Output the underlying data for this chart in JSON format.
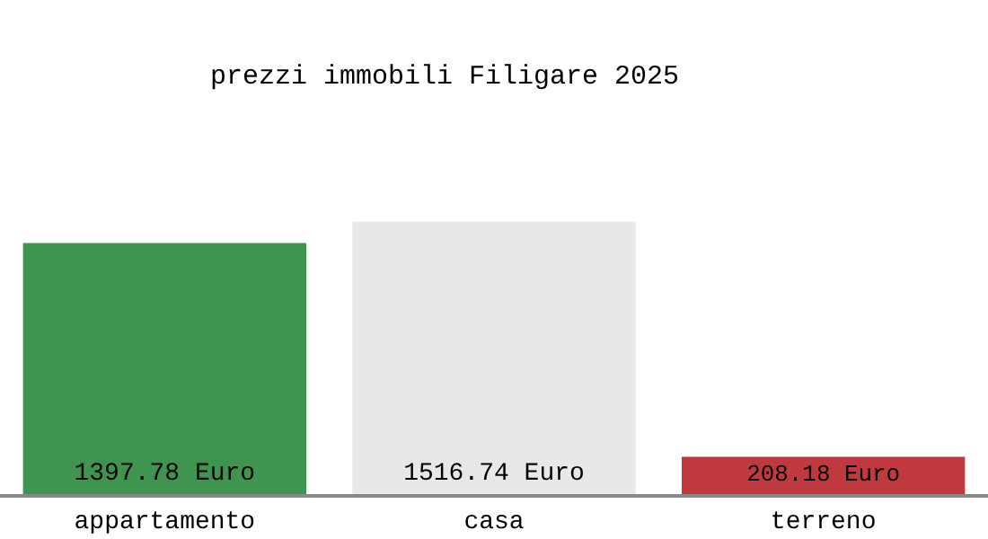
{
  "chart_data": {
    "type": "bar",
    "title": "prezzi immobili Filigare 2025",
    "categories": [
      "appartamento",
      "casa",
      "terreno"
    ],
    "values": [
      1397.78,
      1516.74,
      208.18
    ],
    "colors": [
      "#3f9450",
      "#e8e8e8",
      "#c0393f"
    ],
    "value_labels": [
      "1397.78 Euro",
      "1516.74 Euro",
      "208.18 Euro"
    ]
  }
}
